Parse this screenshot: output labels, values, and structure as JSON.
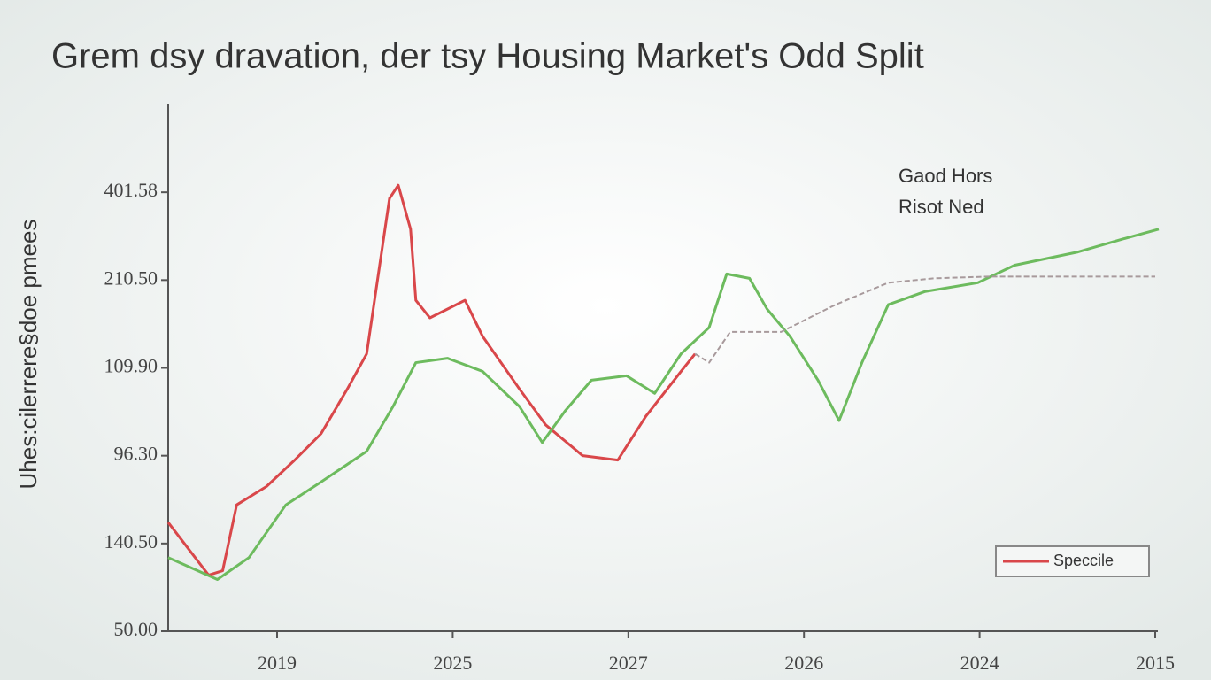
{
  "chart_data": {
    "type": "line",
    "title": "Grem dsy dravation, der tsy Housing Market's Odd Split",
    "y_label": "Uhes:cilerrere§doe pmees",
    "annotation": [
      "Gaod Hors",
      "Risot Ned"
    ],
    "xlim": [
      -0.62,
      5
    ],
    "xticks": [
      {
        "value": 0,
        "label": "2019"
      },
      {
        "value": 1,
        "label": "2025"
      },
      {
        "value": 2,
        "label": "2027"
      },
      {
        "value": 3,
        "label": "2026"
      },
      {
        "value": 4,
        "label": "2024"
      },
      {
        "value": 5,
        "label": "2015"
      }
    ],
    "ylim": [
      0,
      6
    ],
    "yticks": [
      {
        "value": 0,
        "label": "50.00"
      },
      {
        "value": 1,
        "label": "140.50"
      },
      {
        "value": 2,
        "label": "96.30"
      },
      {
        "value": 3,
        "label": "109.90"
      },
      {
        "value": 4,
        "label": "210.50"
      },
      {
        "value": 5,
        "label": "401.58"
      }
    ],
    "legend": "bottom-right",
    "series": [
      {
        "name": "Speccile",
        "color": "#d9474a",
        "x": [
          -0.62,
          -0.39,
          -0.31,
          -0.23,
          -0.06,
          0.1,
          0.25,
          0.4,
          0.51,
          0.64,
          0.69,
          0.76,
          0.79,
          0.87,
          1.07,
          1.17,
          1.38,
          1.53,
          1.74,
          1.94,
          2.1,
          2.3,
          2.38
        ],
        "values": [
          1.24,
          0.64,
          0.69,
          1.44,
          1.65,
          1.95,
          2.25,
          2.76,
          3.16,
          4.93,
          5.08,
          4.58,
          3.77,
          3.57,
          3.77,
          3.36,
          2.76,
          2.35,
          2.0,
          1.95,
          2.45,
          2.96,
          3.16
        ]
      },
      {
        "color": "#6dbb5e",
        "x": [
          -0.62,
          -0.34,
          -0.16,
          0.05,
          0.25,
          0.51,
          0.66,
          0.79,
          0.97,
          1.17,
          1.38,
          1.51,
          1.64,
          1.79,
          1.99,
          2.15,
          2.3,
          2.46,
          2.56,
          2.69,
          2.79,
          2.92,
          3.08,
          3.2,
          3.33,
          3.48,
          3.69,
          3.99,
          4.2,
          4.56,
          4.82,
          5.02
        ],
        "values": [
          0.84,
          0.59,
          0.84,
          1.44,
          1.7,
          2.05,
          2.56,
          3.06,
          3.11,
          2.96,
          2.56,
          2.15,
          2.51,
          2.86,
          2.91,
          2.71,
          3.16,
          3.46,
          4.07,
          4.02,
          3.67,
          3.36,
          2.86,
          2.4,
          3.06,
          3.72,
          3.87,
          3.97,
          4.17,
          4.32,
          4.47,
          4.58
        ]
      },
      {
        "color": "#a89a9c",
        "x": [
          2.38,
          2.46,
          2.58,
          2.87,
          3.18,
          3.48,
          3.74,
          4.05,
          5
        ],
        "values": [
          3.16,
          3.06,
          3.41,
          3.41,
          3.72,
          3.97,
          4.02,
          4.04,
          4.04
        ]
      }
    ]
  }
}
